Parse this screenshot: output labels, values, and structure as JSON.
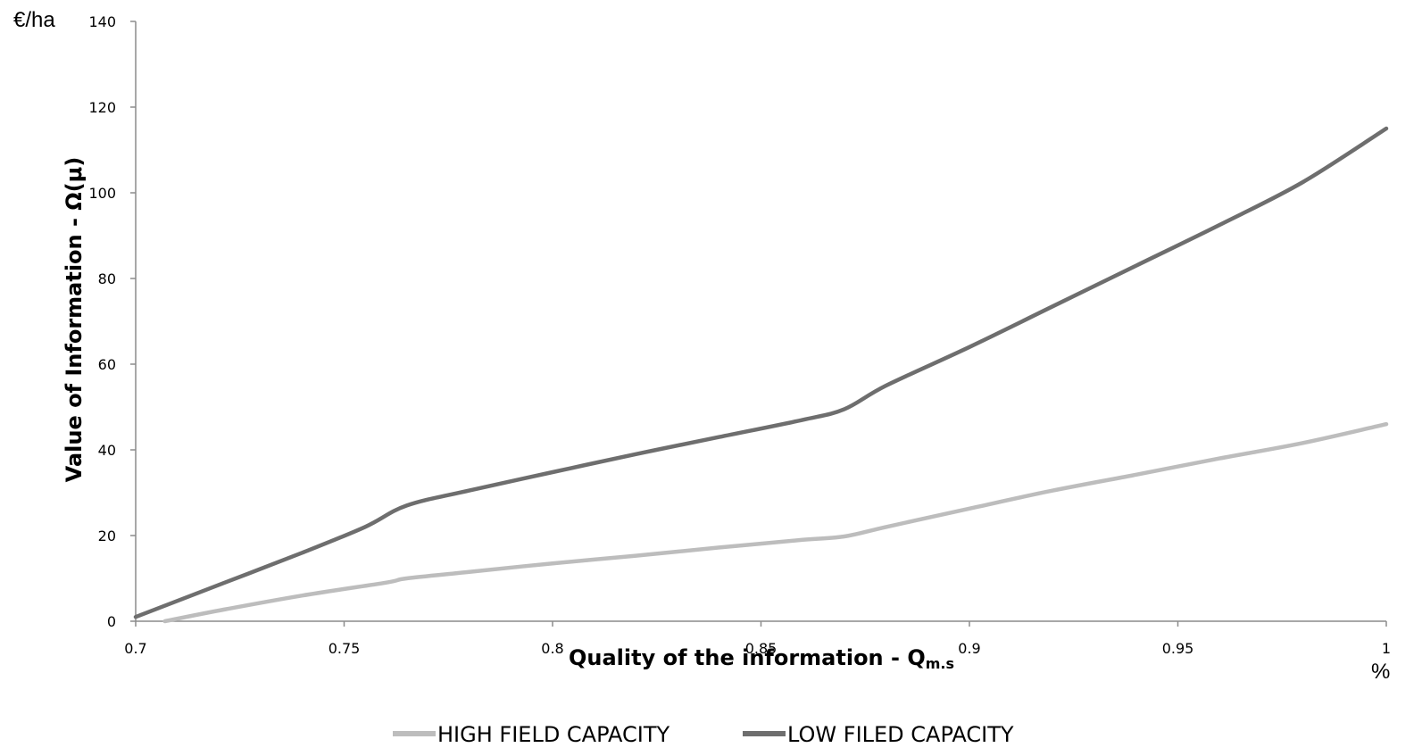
{
  "chart_data": {
    "type": "line",
    "xlabel": "Quality of the information - Q",
    "xlabel_subscript": "m.s",
    "ylabel": "Value of Information - Ω(μ)",
    "y_unit": "€/ha",
    "x_unit": "%",
    "xlim": [
      0.7,
      1
    ],
    "ylim": [
      0,
      140
    ],
    "x_ticks": [
      "0.7",
      "0.75",
      "0.8",
      "0.85",
      "0.9",
      "0.95",
      "1"
    ],
    "y_ticks": [
      "0",
      "20",
      "40",
      "60",
      "80",
      "100",
      "120",
      "140"
    ],
    "grid": false,
    "legend_position": "bottom",
    "series": [
      {
        "name": "HIGH FIELD CAPACITY",
        "color": "#bdbdbd",
        "x": [
          0.707,
          0.72,
          0.74,
          0.76,
          0.765,
          0.78,
          0.8,
          0.82,
          0.84,
          0.86,
          0.87,
          0.88,
          0.9,
          0.92,
          0.94,
          0.96,
          0.98,
          1.0
        ],
        "y": [
          0,
          2.5,
          6,
          9,
          10,
          11.5,
          13.5,
          15.3,
          17.2,
          19,
          19.8,
          22,
          26.3,
          30.5,
          34.2,
          38,
          41.6,
          46
        ]
      },
      {
        "name": "LOW FILED CAPACITY",
        "color": "#6e6e6e",
        "x": [
          0.7,
          0.72,
          0.74,
          0.755,
          0.765,
          0.78,
          0.8,
          0.82,
          0.84,
          0.86,
          0.87,
          0.88,
          0.9,
          0.92,
          0.94,
          0.96,
          0.98,
          1.0
        ],
        "y": [
          1,
          8.5,
          16,
          22,
          27,
          30.5,
          34.8,
          39,
          43,
          47,
          49.5,
          55,
          64,
          73.5,
          83,
          92.5,
          102.5,
          115
        ]
      }
    ]
  }
}
